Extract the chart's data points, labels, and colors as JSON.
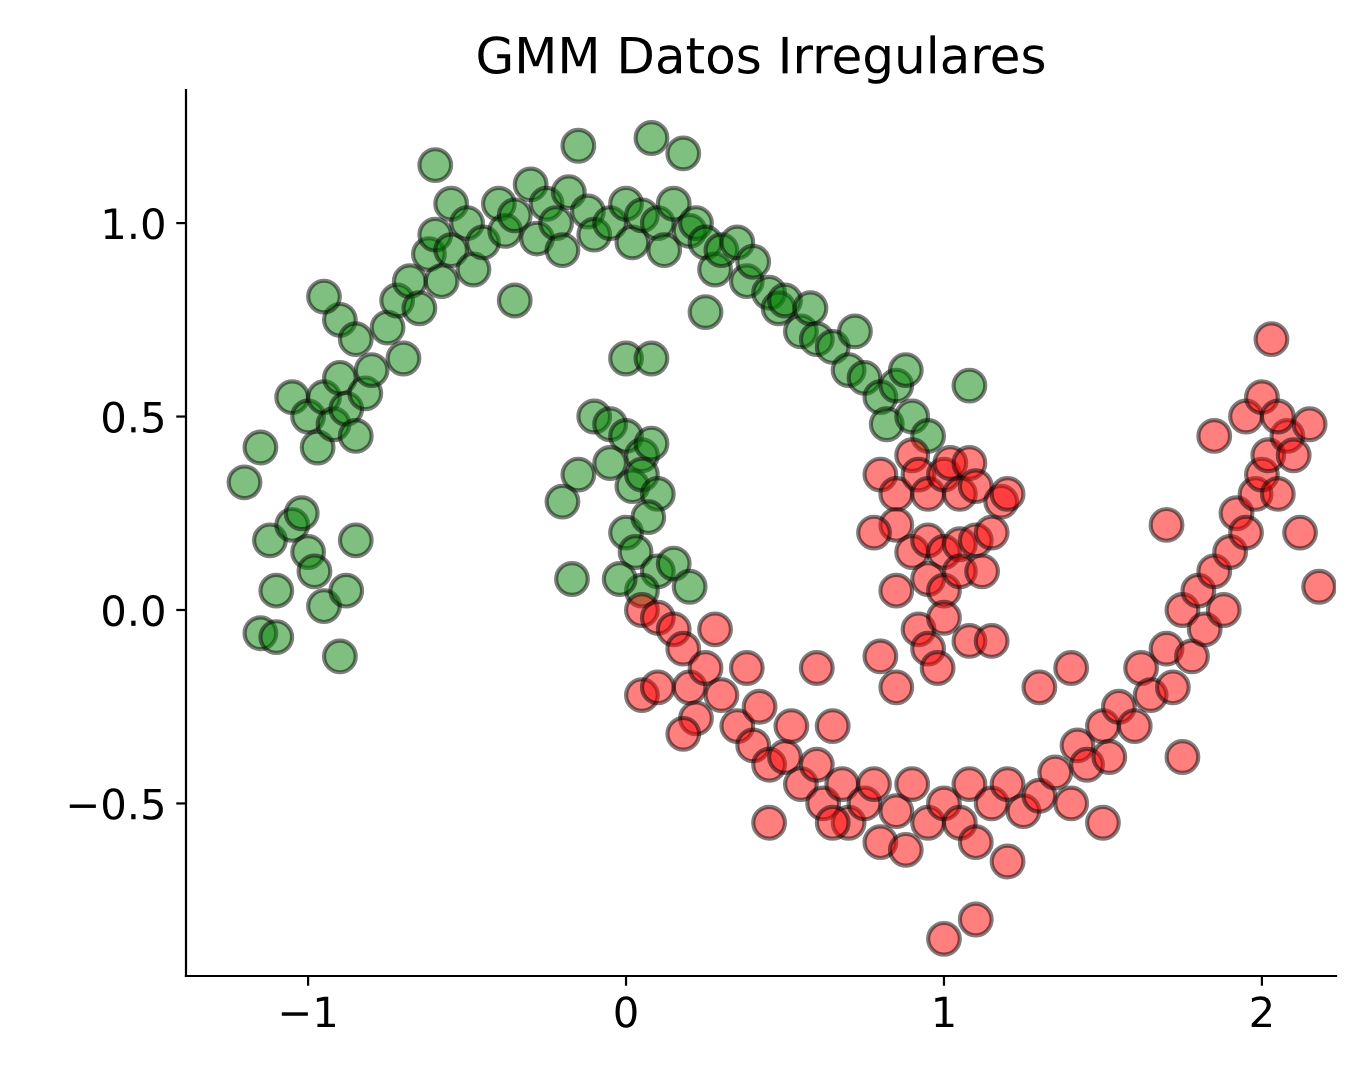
{
  "chart_data": {
    "type": "scatter",
    "title": "GMM Datos Irregulares",
    "xlim": [
      -1.384,
      2.233
    ],
    "ylim": [
      -0.946,
      1.344
    ],
    "xticks": [
      {
        "value": -1,
        "label": "−1"
      },
      0,
      1,
      2
    ],
    "yticks": [
      {
        "value": -0.5,
        "label": "−0.5"
      },
      {
        "value": 0,
        "label": "0.0"
      },
      0.5,
      {
        "value": 1,
        "label": "1.0"
      }
    ],
    "marker": "circle",
    "series": [
      {
        "color": "#008000",
        "x": [
          -1.2,
          -1.15,
          -1.12,
          -1.1,
          -1.15,
          -1.1,
          -1.05,
          -1.02,
          -1.0,
          -0.98,
          -0.95,
          -0.9,
          -0.88,
          -0.85,
          -1.05,
          -1.0,
          -0.97,
          -0.95,
          -0.92,
          -0.9,
          -0.88,
          -0.85,
          -0.82,
          -0.8,
          -0.9,
          -0.85,
          -0.95,
          -0.75,
          -0.72,
          -0.68,
          -0.65,
          -0.62,
          -0.6,
          -0.58,
          -0.55,
          -0.6,
          -0.55,
          -0.5,
          -0.48,
          -0.45,
          -0.4,
          -0.38,
          -0.35,
          -0.3,
          -0.28,
          -0.25,
          -0.22,
          -0.2,
          -0.18,
          -0.15,
          -0.12,
          -0.1,
          -0.05,
          0.0,
          0.02,
          0.05,
          0.08,
          0.1,
          0.12,
          0.15,
          0.18,
          0.2,
          0.22,
          0.25,
          0.28,
          0.3,
          0.35,
          0.38,
          0.4,
          0.45,
          0.48,
          0.5,
          0.55,
          0.58,
          0.6,
          0.65,
          0.7,
          0.72,
          0.75,
          0.8,
          0.82,
          0.85,
          0.88,
          0.9,
          0.95,
          1.08,
          -0.7,
          -0.35,
          0.25,
          -0.1,
          -0.05,
          0.0,
          0.05,
          0.08,
          -0.05,
          0.02,
          0.05,
          0.1,
          -0.15,
          -0.2,
          0.0,
          0.03,
          0.07,
          0.1,
          0.15,
          0.2,
          0.05,
          -0.02,
          0.0,
          0.08,
          -0.17
        ],
        "values": [
          0.33,
          0.42,
          0.18,
          0.05,
          -0.06,
          -0.07,
          0.22,
          0.25,
          0.15,
          0.1,
          0.01,
          -0.12,
          0.05,
          0.18,
          0.55,
          0.5,
          0.42,
          0.55,
          0.48,
          0.6,
          0.52,
          0.45,
          0.56,
          0.62,
          0.75,
          0.7,
          0.81,
          0.73,
          0.8,
          0.85,
          0.78,
          0.92,
          0.97,
          0.85,
          0.93,
          1.15,
          1.05,
          1.0,
          0.88,
          0.95,
          1.05,
          0.98,
          1.02,
          1.1,
          0.96,
          1.05,
          1.0,
          0.93,
          1.08,
          1.2,
          1.03,
          0.97,
          1.0,
          1.05,
          0.95,
          1.02,
          1.22,
          1.0,
          0.93,
          1.05,
          1.18,
          0.98,
          1.0,
          0.95,
          0.88,
          0.93,
          0.95,
          0.85,
          0.9,
          0.82,
          0.78,
          0.8,
          0.72,
          0.78,
          0.7,
          0.68,
          0.62,
          0.72,
          0.6,
          0.55,
          0.48,
          0.58,
          0.62,
          0.5,
          0.45,
          0.58,
          0.65,
          0.8,
          0.77,
          0.5,
          0.48,
          0.45,
          0.4,
          0.43,
          0.38,
          0.32,
          0.35,
          0.3,
          0.35,
          0.28,
          0.2,
          0.15,
          0.24,
          0.1,
          0.12,
          0.06,
          0.05,
          0.08,
          0.65,
          0.65,
          0.08
        ]
      },
      {
        "color": "#ff0000",
        "x": [
          0.8,
          0.85,
          0.9,
          0.92,
          0.95,
          1.0,
          1.02,
          1.05,
          1.08,
          1.1,
          0.85,
          0.9,
          0.95,
          1.0,
          1.05,
          1.1,
          1.15,
          1.18,
          0.95,
          1.0,
          1.05,
          1.12,
          0.78,
          0.85,
          0.92,
          1.0,
          1.08,
          1.15,
          1.2,
          0.05,
          0.1,
          0.15,
          0.05,
          0.18,
          0.2,
          0.25,
          0.28,
          0.22,
          0.3,
          0.35,
          0.38,
          0.4,
          0.42,
          0.45,
          0.5,
          0.52,
          0.55,
          0.6,
          0.62,
          0.65,
          0.68,
          0.7,
          0.75,
          0.78,
          0.8,
          0.85,
          0.88,
          0.9,
          0.95,
          1.0,
          1.05,
          1.08,
          1.1,
          1.15,
          1.2,
          1.25,
          1.3,
          1.35,
          1.4,
          1.42,
          1.45,
          1.5,
          1.52,
          1.55,
          1.6,
          1.62,
          1.65,
          1.7,
          1.72,
          1.75,
          1.78,
          1.8,
          1.82,
          1.85,
          1.88,
          1.9,
          1.92,
          1.95,
          1.98,
          2.0,
          2.02,
          2.05,
          2.08,
          1.95,
          2.0,
          2.05,
          2.1,
          2.03,
          2.15,
          2.18,
          2.12,
          1.85,
          1.7,
          1.0,
          1.1,
          0.95,
          0.85,
          0.8,
          0.6,
          0.18,
          0.1,
          0.45,
          0.98,
          1.3,
          1.4,
          1.5,
          1.75,
          1.2,
          0.65
        ],
        "values": [
          0.35,
          0.3,
          0.4,
          0.35,
          0.3,
          0.35,
          0.38,
          0.3,
          0.38,
          0.32,
          0.22,
          0.15,
          0.18,
          0.15,
          0.17,
          0.18,
          0.2,
          0.28,
          0.08,
          0.05,
          0.1,
          0.1,
          0.2,
          0.05,
          -0.05,
          -0.02,
          -0.08,
          -0.08,
          0.3,
          0.0,
          -0.02,
          -0.05,
          -0.22,
          -0.1,
          -0.2,
          -0.15,
          -0.05,
          -0.28,
          -0.22,
          -0.3,
          -0.15,
          -0.35,
          -0.25,
          -0.4,
          -0.38,
          -0.3,
          -0.45,
          -0.4,
          -0.5,
          -0.3,
          -0.45,
          -0.55,
          -0.5,
          -0.45,
          -0.6,
          -0.52,
          -0.62,
          -0.45,
          -0.55,
          -0.5,
          -0.55,
          -0.45,
          -0.6,
          -0.5,
          -0.45,
          -0.52,
          -0.48,
          -0.42,
          -0.5,
          -0.35,
          -0.4,
          -0.3,
          -0.38,
          -0.25,
          -0.3,
          -0.15,
          -0.22,
          -0.1,
          -0.2,
          0.0,
          -0.12,
          0.05,
          -0.05,
          0.1,
          0.0,
          0.15,
          0.25,
          0.2,
          0.3,
          0.35,
          0.4,
          0.3,
          0.45,
          0.5,
          0.55,
          0.5,
          0.4,
          0.7,
          0.48,
          0.06,
          0.2,
          0.45,
          0.22,
          -0.85,
          -0.8,
          -0.1,
          -0.2,
          -0.12,
          -0.15,
          -0.32,
          -0.2,
          -0.55,
          -0.15,
          -0.2,
          -0.15,
          -0.55,
          -0.38,
          -0.65,
          -0.55
        ]
      }
    ]
  }
}
